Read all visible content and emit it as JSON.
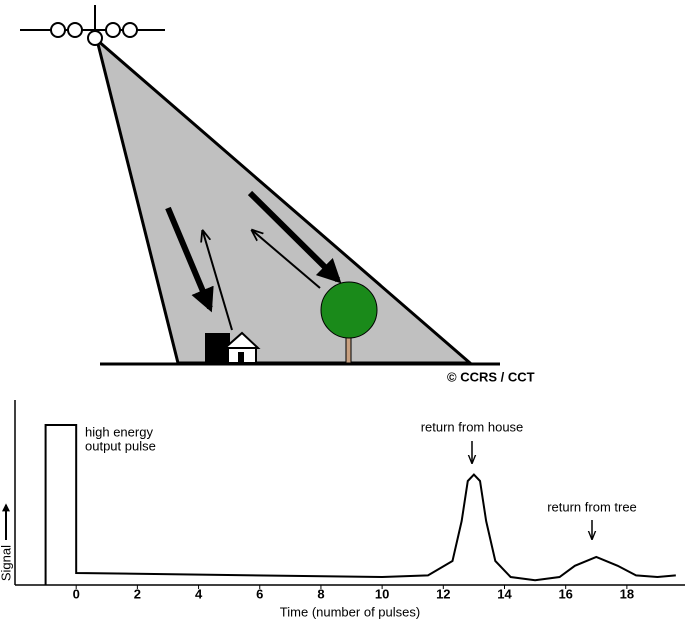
{
  "diagram": {
    "credit": "© CCRS / CCT"
  },
  "chart_data": {
    "type": "line",
    "xlabel": "Time (number of pulses)",
    "ylabel": "Signal",
    "annotations": [
      "high energy",
      "output pulse",
      "return from house",
      "return from tree"
    ],
    "x": [
      -1,
      -1,
      0,
      0,
      10,
      11.5,
      12.3,
      12.6,
      12.8,
      13,
      13.2,
      13.4,
      13.7,
      14.2,
      15,
      15.8,
      16.3,
      17,
      17.7,
      18.3,
      19,
      19.6
    ],
    "values": [
      0,
      10,
      10,
      0.75,
      0.5,
      0.6,
      1.5,
      4,
      6.5,
      6.9,
      6.5,
      4,
      1.5,
      0.5,
      0.3,
      0.5,
      1.2,
      1.75,
      1.2,
      0.6,
      0.5,
      0.6
    ],
    "color": "#000000",
    "xlim": [
      -2,
      19.9
    ],
    "ylim": [
      0,
      11.5
    ],
    "xticks": [
      0,
      2,
      4,
      6,
      8,
      10,
      12,
      14,
      16,
      18
    ]
  }
}
